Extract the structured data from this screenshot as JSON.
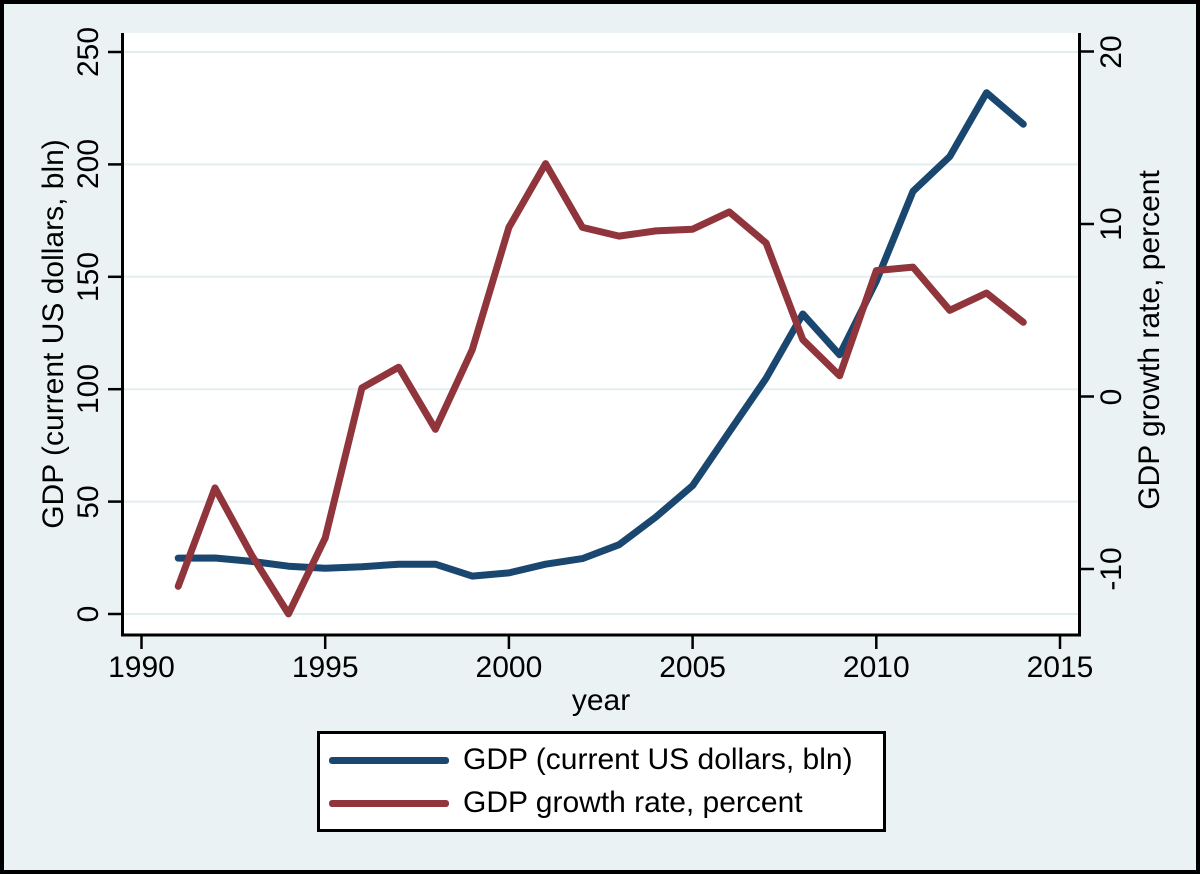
{
  "figure": {
    "background": "#eaf2f3",
    "plot_background": "#ffffff",
    "grid_color": "#e3eef0",
    "axis_color": "#000000",
    "text_color": "#000000"
  },
  "chart_data": {
    "type": "line",
    "title": "",
    "xlabel": "year",
    "ylabel_left": "GDP (current US dollars, bln)",
    "ylabel_right": "GDP growth rate, percent",
    "grid": true,
    "legend_position": "bottom",
    "xlim": [
      1989.5,
      2015.5
    ],
    "ylim_left": [
      -8.7,
      258.5
    ],
    "ylim_right": [
      -13.7,
      21.1
    ],
    "x_ticks": [
      1990,
      1995,
      2000,
      2005,
      2010,
      2015
    ],
    "y_left_ticks": [
      0,
      50,
      100,
      150,
      200,
      250
    ],
    "y_right_ticks": [
      -10,
      0,
      10,
      20
    ],
    "x": [
      1991,
      1992,
      1993,
      1994,
      1995,
      1996,
      1997,
      1998,
      1999,
      2000,
      2001,
      2002,
      2003,
      2004,
      2005,
      2006,
      2007,
      2008,
      2009,
      2010,
      2011,
      2012,
      2013,
      2014
    ],
    "series": [
      {
        "name": "GDP (current US dollars, bln)",
        "axis": "left",
        "color": "#1a476f",
        "values": [
          24.88,
          24.91,
          23.4,
          21.25,
          20.37,
          21.04,
          22.17,
          22.14,
          16.87,
          18.29,
          22.15,
          24.64,
          30.83,
          43.15,
          57.12,
          81.0,
          104.85,
          133.44,
          115.31,
          148.05,
          188.05,
          203.52,
          231.88,
          217.87
        ]
      },
      {
        "name": "GDP growth rate, percent",
        "axis": "right",
        "color": "#90353b",
        "values": [
          -11.0,
          -5.3,
          -9.2,
          -12.6,
          -8.2,
          0.5,
          1.7,
          -1.9,
          2.7,
          9.8,
          13.5,
          9.8,
          9.3,
          9.6,
          9.7,
          10.7,
          8.9,
          3.3,
          1.2,
          7.3,
          7.5,
          5.0,
          6.0,
          4.3
        ]
      }
    ]
  }
}
